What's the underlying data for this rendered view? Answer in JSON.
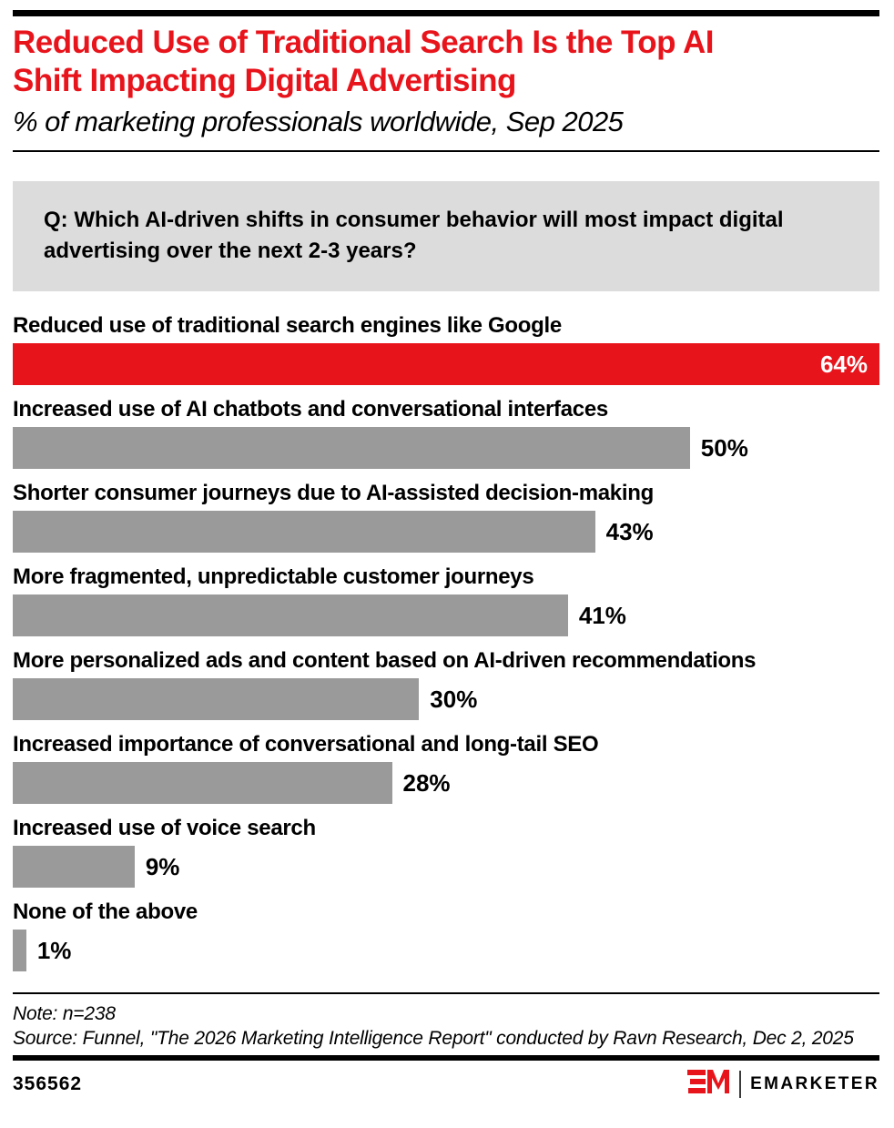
{
  "header": {
    "title": "Reduced Use of Traditional Search Is the Top AI Shift Impacting Digital Advertising",
    "title_lines": [
      "Reduced Use of Traditional Search Is the Top AI",
      "Shift Impacting Digital Advertising"
    ],
    "subtitle": "% of marketing professionals worldwide, Sep 2025"
  },
  "question": "Q: Which AI-driven shifts in consumer behavior will most impact digital advertising over the next 2-3 years?",
  "chart_data": {
    "type": "bar",
    "orientation": "horizontal",
    "title": "Reduced Use of Traditional Search Is the Top AI Shift Impacting Digital Advertising",
    "xlabel": "",
    "ylabel": "",
    "categories": [
      "Reduced use of traditional search engines like Google",
      "Increased use of AI chatbots and conversational interfaces",
      "Shorter consumer journeys due to AI-assisted decision-making",
      "More fragmented, unpredictable customer journeys",
      "More personalized ads and content based on AI-driven recommendations",
      "Increased importance of conversational and long-tail SEO",
      "Increased use of voice search",
      "None of the above"
    ],
    "values": [
      64,
      50,
      43,
      41,
      30,
      28,
      9,
      1
    ],
    "value_labels": [
      "64%",
      "50%",
      "43%",
      "41%",
      "30%",
      "28%",
      "9%",
      "1%"
    ],
    "max_value": 64,
    "highlight_index": 0,
    "label_inside_indices": [
      0
    ],
    "bar_color_highlight": "#E8141C",
    "bar_color_default": "#9A9A9A",
    "grid": "off",
    "legend": "none",
    "category_label_position": "above-bar",
    "value_label_position": "end-of-bar"
  },
  "footer": {
    "note": "Note: n=238",
    "source": "Source: Funnel, \"The 2026 Marketing Intelligence Report\" conducted by Ravn Research, Dec 2, 2025",
    "chart_id": "356562",
    "brand": "EMARKETER"
  },
  "colors": {
    "accent_red": "#E8141C",
    "bar_gray": "#9A9A9A",
    "question_box_bg": "#DCDCDC",
    "text": "#000000",
    "value_label_inside": "#FFFFFF"
  },
  "icons": {
    "logo": "emarketer-em-mark"
  }
}
